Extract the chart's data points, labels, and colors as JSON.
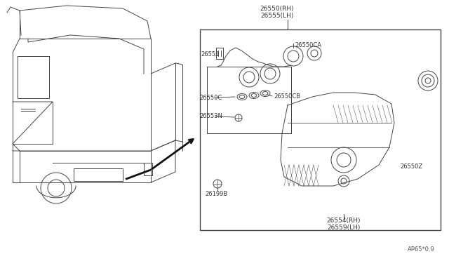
{
  "bg_color": "#ffffff",
  "lc": "#444444",
  "diagram_code": "AP65*0.9",
  "labels": {
    "top_rh_lh": "26550(RH)\n26555(LH)",
    "26550CA": "26550CA",
    "26551": "26551",
    "26550C": "26550C",
    "26550CB": "26550CB",
    "26553N": "26553N",
    "26199B": "26199B",
    "26550Z": "26550Z",
    "bot_rh_lh": "26554(RH)\n26559(LH)"
  }
}
